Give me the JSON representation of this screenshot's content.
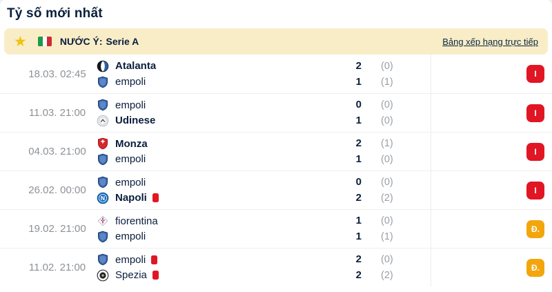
{
  "page": {
    "title": "Tỷ số mới nhất"
  },
  "header": {
    "star_icon": "★",
    "flag_icon": "italy-flag",
    "country": "NƯỚC Ý:",
    "league": "Serie A",
    "link": "Bảng xếp hạng trực tiếp"
  },
  "colors": {
    "bar_background": "#F8EDC7",
    "star": "#F2C110",
    "text_dark": "#0A1E3C",
    "text_gray": "#8D9196",
    "loss_badge": "#E11624",
    "draw_badge": "#F2A60C",
    "red_card": "#E11624"
  },
  "matches": [
    {
      "datetime": "18.03. 02:45",
      "home": {
        "name": "Atalanta",
        "logo": "atalanta",
        "bold": true,
        "red_card": false,
        "score": "2",
        "ht": "(0)"
      },
      "away": {
        "name": "empoli",
        "logo": "empoli",
        "bold": false,
        "red_card": false,
        "score": "1",
        "ht": "(1)"
      },
      "result_badge": {
        "label": "I",
        "type": "loss"
      }
    },
    {
      "datetime": "11.03. 21:00",
      "home": {
        "name": "empoli",
        "logo": "empoli",
        "bold": false,
        "red_card": false,
        "score": "0",
        "ht": "(0)"
      },
      "away": {
        "name": "Udinese",
        "logo": "udinese",
        "bold": true,
        "red_card": false,
        "score": "1",
        "ht": "(0)"
      },
      "result_badge": {
        "label": "I",
        "type": "loss"
      }
    },
    {
      "datetime": "04.03. 21:00",
      "home": {
        "name": "Monza",
        "logo": "monza",
        "bold": true,
        "red_card": false,
        "score": "2",
        "ht": "(1)"
      },
      "away": {
        "name": "empoli",
        "logo": "empoli",
        "bold": false,
        "red_card": false,
        "score": "1",
        "ht": "(0)"
      },
      "result_badge": {
        "label": "I",
        "type": "loss"
      }
    },
    {
      "datetime": "26.02. 00:00",
      "home": {
        "name": "empoli",
        "logo": "empoli",
        "bold": false,
        "red_card": false,
        "score": "0",
        "ht": "(0)"
      },
      "away": {
        "name": "Napoli",
        "logo": "napoli",
        "bold": true,
        "red_card": true,
        "score": "2",
        "ht": "(2)"
      },
      "result_badge": {
        "label": "I",
        "type": "loss"
      }
    },
    {
      "datetime": "19.02. 21:00",
      "home": {
        "name": "fiorentina",
        "logo": "fiorentina",
        "bold": false,
        "red_card": false,
        "score": "1",
        "ht": "(0)"
      },
      "away": {
        "name": "empoli",
        "logo": "empoli",
        "bold": false,
        "red_card": false,
        "score": "1",
        "ht": "(1)"
      },
      "result_badge": {
        "label": "Đ.",
        "type": "draw"
      }
    },
    {
      "datetime": "11.02. 21:00",
      "home": {
        "name": "empoli",
        "logo": "empoli",
        "bold": false,
        "red_card": true,
        "score": "2",
        "ht": "(0)"
      },
      "away": {
        "name": "Spezia",
        "logo": "spezia",
        "bold": false,
        "red_card": true,
        "score": "2",
        "ht": "(2)"
      },
      "result_badge": {
        "label": "Đ.",
        "type": "draw"
      }
    }
  ]
}
